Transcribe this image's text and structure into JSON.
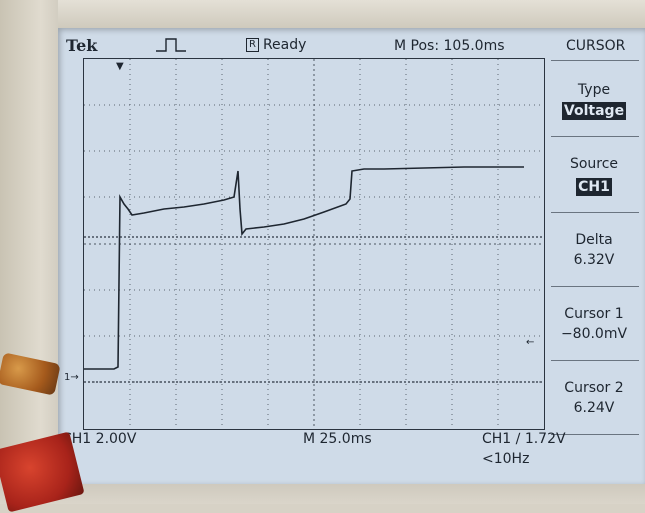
{
  "header": {
    "brand": "Tek",
    "trigger_state": "Ready",
    "mode_badge": "R",
    "position": "M Pos: 105.0ms",
    "menu_title": "CURSOR"
  },
  "menu": {
    "type_label": "Type",
    "type_value": "Voltage",
    "source_label": "Source",
    "source_value": "CH1",
    "delta_label": "Delta",
    "delta_value": "6.32V",
    "cursor1_label": "Cursor 1",
    "cursor1_value": "−80.0mV",
    "cursor2_label": "Cursor 2",
    "cursor2_value": "6.24V"
  },
  "footer": {
    "channel_scale": "CH1  2.00V",
    "time_scale": "M 25.0ms",
    "trigger_info": "CH1 ∕ 1.72V",
    "frequency": "<10Hz"
  },
  "markers": {
    "ground_marker": "1→",
    "cursor_arrow": "←"
  },
  "colors": {
    "screen": "#cfdbe8",
    "trace": "#1e2630"
  }
}
